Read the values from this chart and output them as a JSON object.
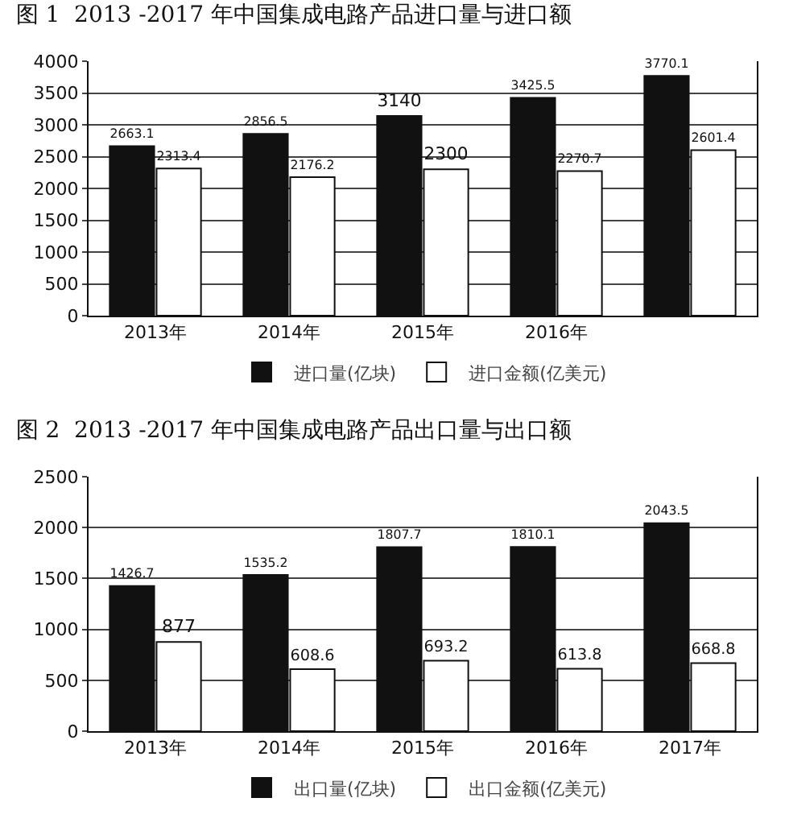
{
  "chart_data": [
    {
      "type": "bar",
      "title": "图 1  2013 -2017 年中国集成电路产品进口量与进口额",
      "categories": [
        "2013年",
        "2014年",
        "2015年",
        "2016年",
        null
      ],
      "series": [
        {
          "name": "进口量(亿块)",
          "color": "#111111",
          "values": [
            2663.1,
            2856.5,
            3140,
            3425.5,
            3770.1
          ]
        },
        {
          "name": "进口金额(亿美元)",
          "color": "#ffffff",
          "values": [
            2313.4,
            2176.2,
            2300,
            2270.7,
            2601.4
          ]
        }
      ],
      "ylim": [
        0,
        4000
      ],
      "yticks": [
        0,
        500,
        1000,
        1500,
        2000,
        2500,
        3000,
        3500,
        4000
      ],
      "grid": "y",
      "legend": "bottom",
      "data_labels": true
    },
    {
      "type": "bar",
      "title": "图 2  2013 -2017 年中国集成电路产品出口量与出口额",
      "categories": [
        "2013年",
        "2014年",
        "2015年",
        "2016年",
        "2017年"
      ],
      "series": [
        {
          "name": "出口量(亿块)",
          "color": "#111111",
          "values": [
            1426.7,
            1535.2,
            1807.7,
            1810.1,
            2043.5
          ]
        },
        {
          "name": "出口金额(亿美元)",
          "color": "#ffffff",
          "values": [
            877,
            608.6,
            693.2,
            613.8,
            668.8
          ]
        }
      ],
      "ylim": [
        0,
        2500
      ],
      "yticks": [
        0,
        500,
        1000,
        1500,
        2000,
        2500
      ],
      "grid": "y",
      "legend": "bottom",
      "data_labels": true
    }
  ]
}
